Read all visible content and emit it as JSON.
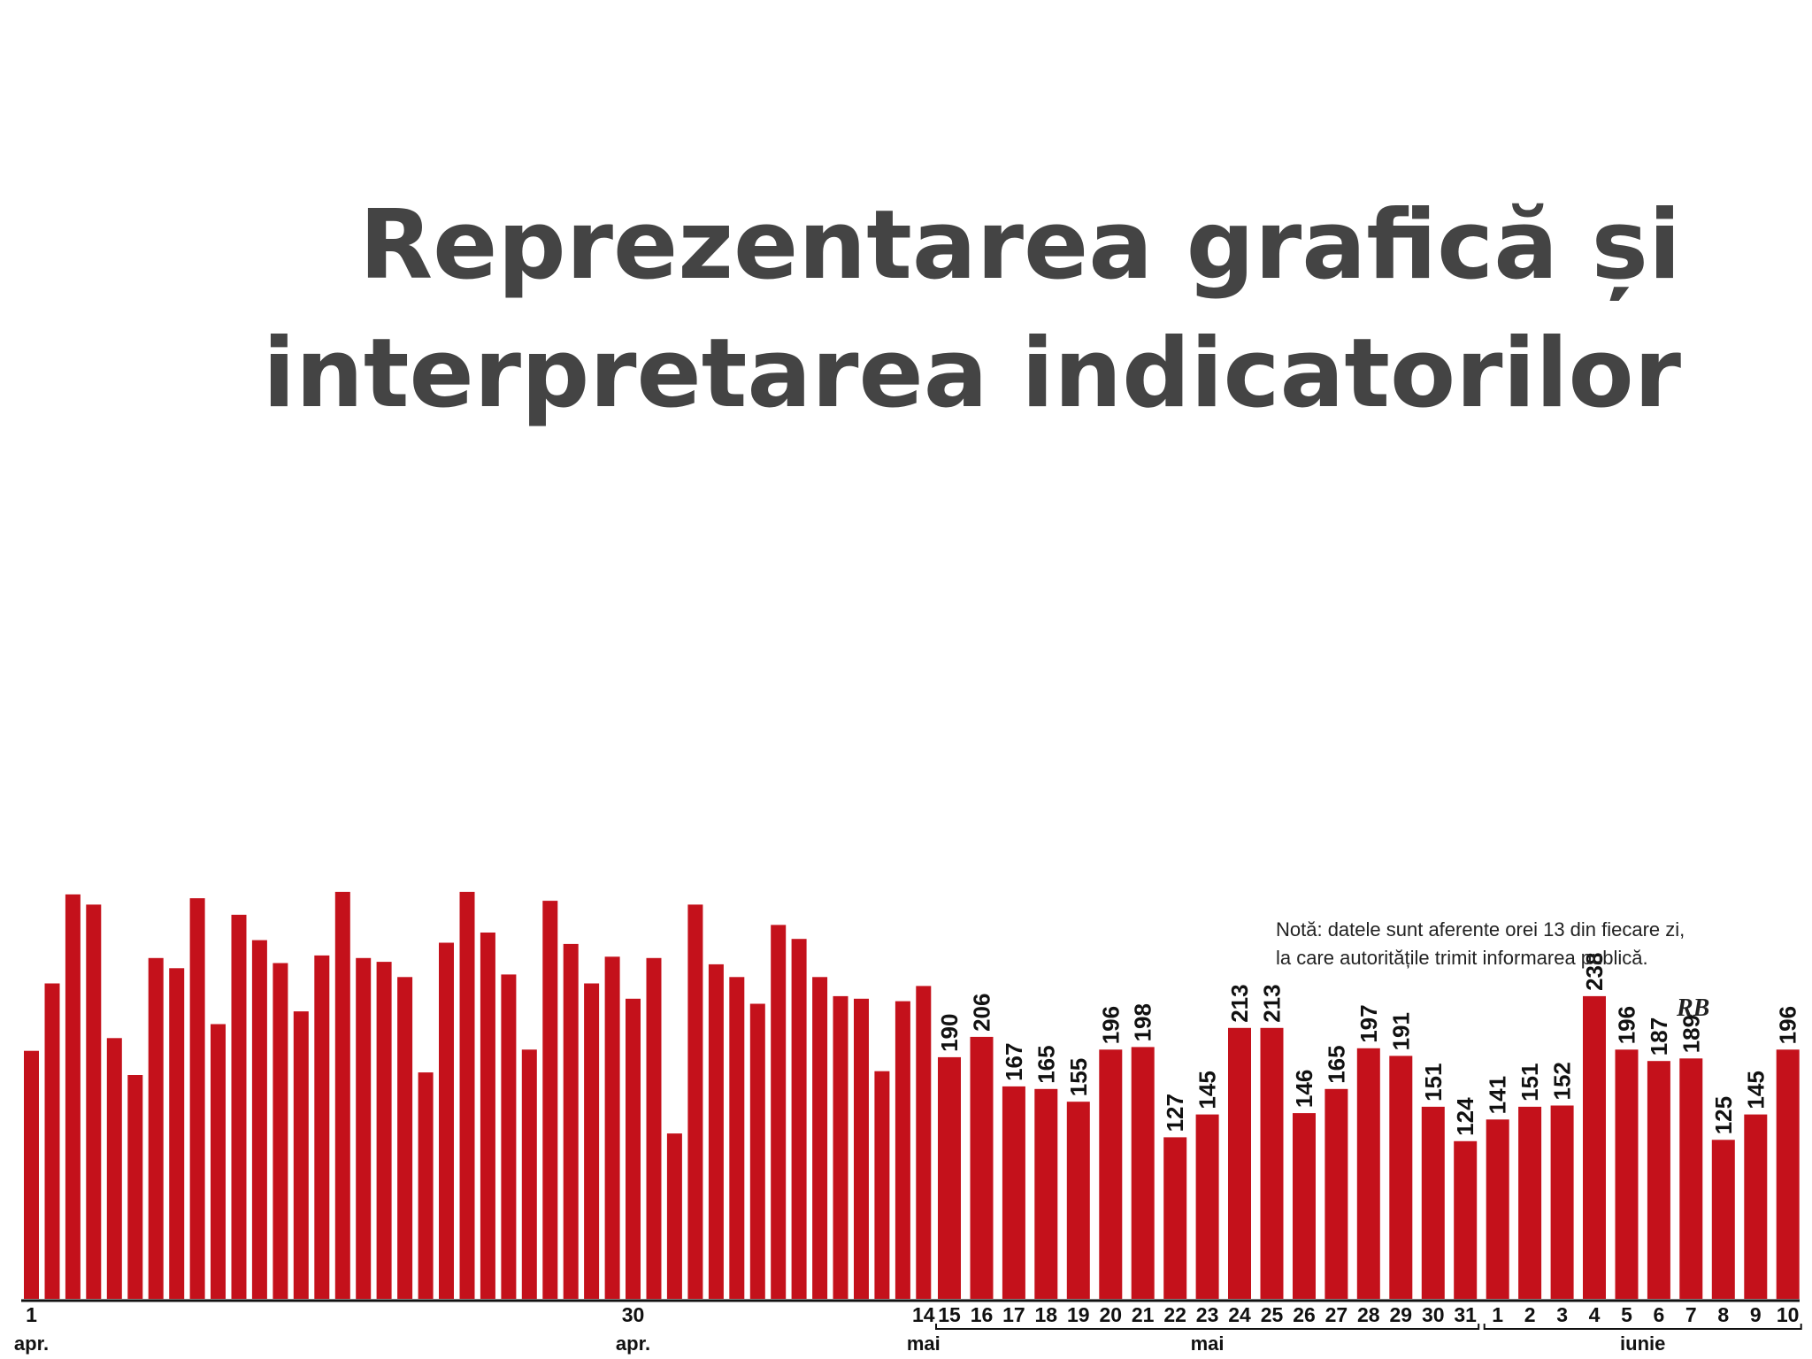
{
  "slide": {
    "title_line1": "Reprezentarea grafică  și",
    "title_line2": "interpretarea indicatorilor"
  },
  "chart_data": {
    "type": "bar",
    "color": "#c4111b",
    "note_line1": "Notă: datele sunt aferente orei 13 din fiecare zi,",
    "note_line2": "la care autoritățile trimit informarea publică.",
    "signature": "RB",
    "ylim": [
      0,
      300
    ],
    "narrow_values": [
      195,
      248,
      318,
      310,
      205,
      176,
      268,
      260,
      315,
      216,
      302,
      282,
      264,
      226,
      270,
      320,
      268,
      265,
      253,
      178,
      280,
      320,
      288,
      255,
      196,
      313,
      279,
      248,
      269,
      236,
      268,
      130,
      310,
      263,
      253,
      232,
      294,
      283,
      253,
      238,
      236,
      179,
      234,
      246
    ],
    "wide_values": [
      190,
      206,
      167,
      165,
      155,
      196,
      198,
      127,
      145,
      213,
      213,
      146,
      165,
      197,
      191,
      151,
      124,
      141,
      151,
      152,
      238,
      196,
      187,
      189,
      125,
      145,
      196
    ],
    "narrow_tick_labels": [
      {
        "index": 0,
        "day": "1",
        "month": "apr."
      },
      {
        "index": 29,
        "day": "30",
        "month": "apr."
      },
      {
        "index": 43,
        "day": "14",
        "month": "mai"
      }
    ],
    "wide_days": [
      "15",
      "16",
      "17",
      "18",
      "19",
      "20",
      "21",
      "22",
      "23",
      "24",
      "25",
      "26",
      "27",
      "28",
      "29",
      "30",
      "31",
      "1",
      "2",
      "3",
      "4",
      "5",
      "6",
      "7",
      "8",
      "9",
      "10"
    ],
    "month_groups": [
      {
        "label": "mai",
        "from": 0,
        "to": 16
      },
      {
        "label": "iunie",
        "from": 17,
        "to": 26
      }
    ]
  }
}
